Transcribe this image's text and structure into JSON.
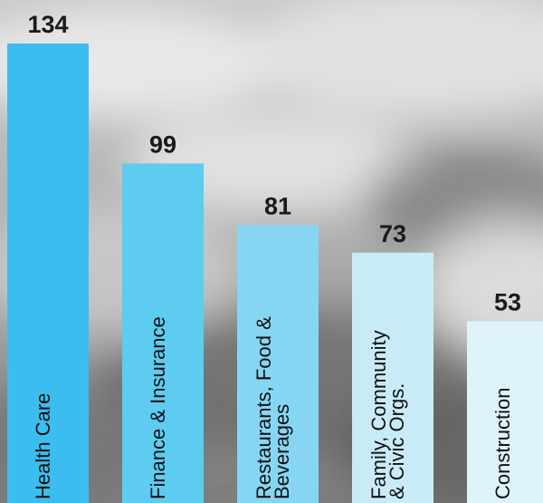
{
  "chart_data": {
    "type": "bar",
    "title": "",
    "xlabel": "",
    "ylabel": "",
    "categories": [
      [
        "Health Care"
      ],
      [
        "Finance & Insurance"
      ],
      [
        "Restaurants, Food &",
        "Beverages"
      ],
      [
        "Family, Community",
        "& Civic Orgs."
      ],
      [
        "Construction"
      ]
    ],
    "values": [
      134,
      99,
      81,
      73,
      53
    ],
    "colors": [
      "#3cbdf0",
      "#5ecbf0",
      "#86d6f3",
      "#c9ebf8",
      "#dff3fa"
    ],
    "ylim": [
      0,
      134
    ],
    "grid": false,
    "legend": "none"
  }
}
